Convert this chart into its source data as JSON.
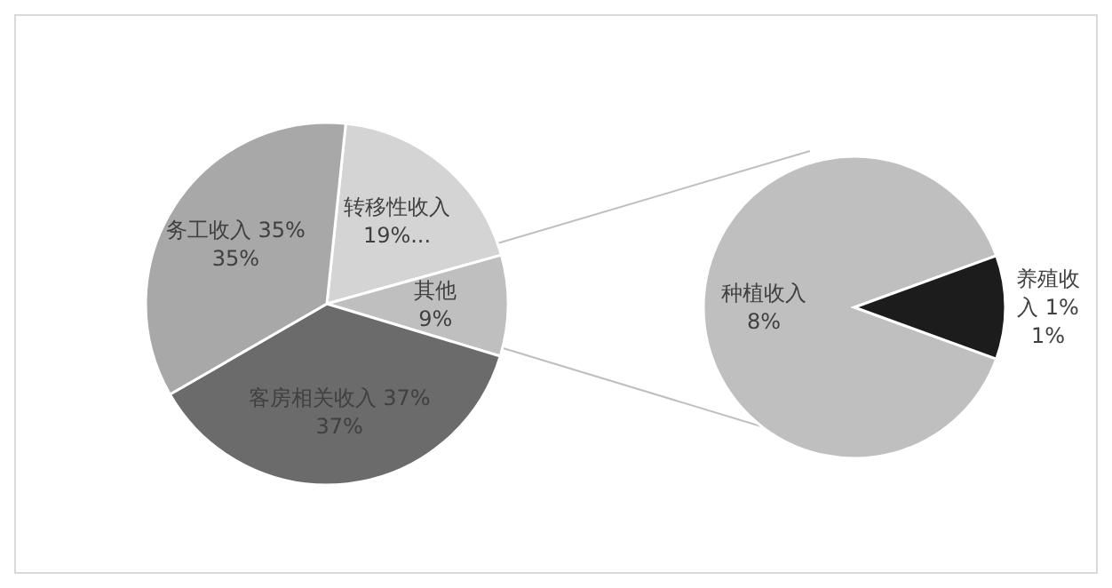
{
  "chart_data": [
    {
      "type": "pie",
      "categories": [
        "转移性收入",
        "其他",
        "客房相关收入",
        "务工收入"
      ],
      "values": [
        19,
        9,
        37,
        35
      ],
      "colors": [
        "#d4d4d4",
        "#bfbfbf",
        "#6b6b6b",
        "#a8a8a8"
      ],
      "value_labels": [
        "19%...",
        "9%",
        "37% 37%",
        "35% 35%"
      ]
    },
    {
      "type": "pie",
      "categories": [
        "种植收入",
        "养殖收入"
      ],
      "values": [
        8,
        1
      ],
      "colors": [
        "#bfbfbf",
        "#1c1c1c"
      ],
      "value_labels": [
        "8%",
        "1% 1%"
      ]
    }
  ]
}
